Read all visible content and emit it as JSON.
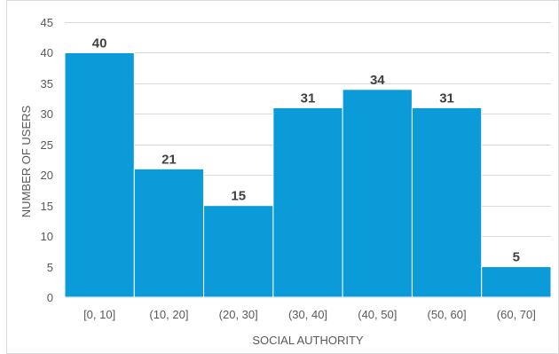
{
  "chart_data": {
    "type": "bar",
    "title": "",
    "xlabel": "SOCIAL AUTHORITY",
    "ylabel": "NUMBER OF USERS",
    "categories": [
      "[0, 10]",
      "(10, 20]",
      "(20, 30]",
      "(30, 40]",
      "(40, 50]",
      "(50, 60]",
      "(60, 70]"
    ],
    "values": [
      40,
      21,
      15,
      31,
      34,
      31,
      5
    ],
    "ylim": [
      0,
      45
    ],
    "yticks": [
      0,
      5,
      10,
      15,
      20,
      25,
      30,
      35,
      40,
      45
    ],
    "grid": true,
    "legend": "none",
    "bar_color": "#0B9BD8"
  }
}
